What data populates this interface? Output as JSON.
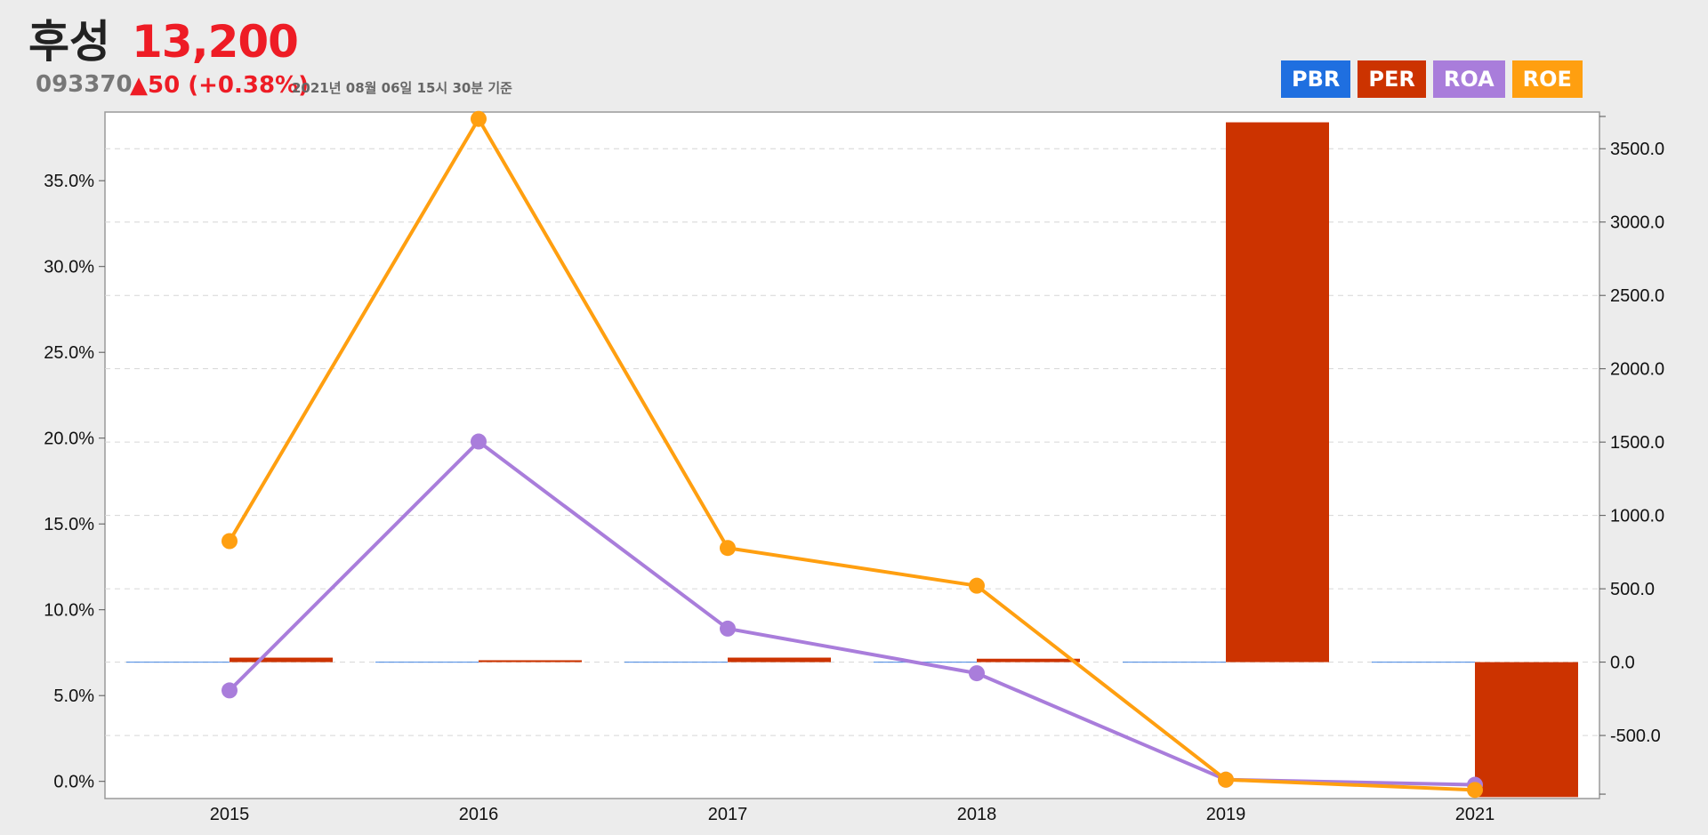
{
  "header": {
    "name": "후성",
    "price": "13,200",
    "code": "093370",
    "change": "▲50 (+0.38%)",
    "timestamp": "2021년 08월 06일 15시 30분 기준"
  },
  "legend": [
    {
      "label": "PBR",
      "color": "#1f6fe0"
    },
    {
      "label": "PER",
      "color": "#cc3300"
    },
    {
      "label": "ROA",
      "color": "#a97ddb"
    },
    {
      "label": "ROE",
      "color": "#ff9f10"
    }
  ],
  "chart_data": {
    "type": "bar",
    "categories": [
      "2015",
      "2016",
      "2017",
      "2018",
      "2019",
      "2021"
    ],
    "left_axis": {
      "min": -1.0,
      "max": 39.0,
      "ticks": [
        "0.0%",
        "5.0%",
        "10.0%",
        "15.0%",
        "20.0%",
        "25.0%",
        "30.0%",
        "35.0%"
      ]
    },
    "right_axis": {
      "min": -930,
      "max": 3750,
      "ticks": [
        "-500.0",
        "0.0",
        "500.0",
        "1000.0",
        "1500.0",
        "2000.0",
        "2500.0",
        "3000.0",
        "3500.0"
      ]
    },
    "grid": true,
    "legend_position": "top-right",
    "series": [
      {
        "name": "PBR",
        "axis": "right",
        "kind": "bar",
        "color": "#1f6fe0",
        "values": [
          1.8,
          2.9,
          2.1,
          1.9,
          1.7,
          2.7
        ]
      },
      {
        "name": "PER",
        "axis": "right",
        "kind": "bar",
        "color": "#cc3300",
        "values": [
          30.5,
          12.8,
          30.7,
          23.2,
          3680,
          -920
        ]
      },
      {
        "name": "ROA",
        "axis": "left",
        "kind": "line",
        "color": "#a97ddb",
        "values": [
          5.3,
          19.8,
          8.9,
          6.3,
          0.1,
          -0.2
        ]
      },
      {
        "name": "ROE",
        "axis": "left",
        "kind": "line",
        "color": "#ff9f10",
        "values": [
          14.0,
          38.6,
          13.6,
          11.4,
          0.1,
          -0.5
        ]
      }
    ]
  }
}
